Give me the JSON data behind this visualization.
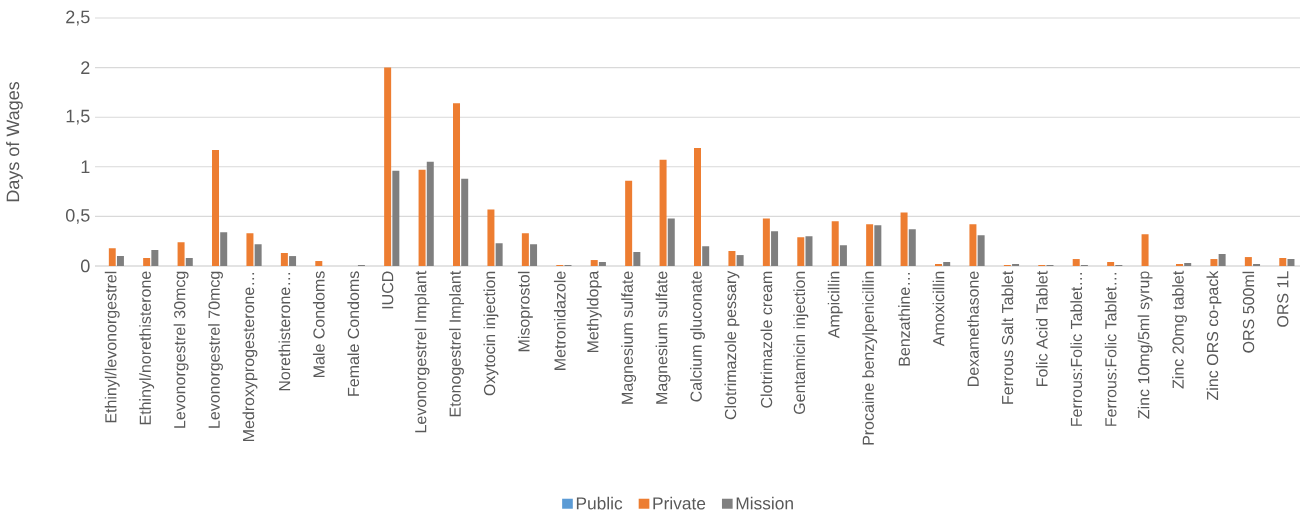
{
  "chart_data": {
    "type": "bar",
    "ylabel": "Days of Wages",
    "categories": [
      "Ethinyl/levonorgestrel",
      "Ethinyl/norethisterone",
      "Levonorgestrel 30mcg",
      "Levonorgestrel 70mcg",
      "Medroxyprogesterone…",
      "Norethisterone…",
      "Male Condoms",
      "Female Condoms",
      "IUCD",
      "Levonorgestrel Implant",
      "Etonogestrel Implant",
      "Oxytocin injection",
      "Misoprostol",
      "Metronidazole",
      "Methyldopa",
      "Magnesium sulfate",
      "Magnesium sulfate",
      "Calcium gluconate",
      "Clotrimazole pessary",
      "Clotrimazole cream",
      "Gentamicin injection",
      "Ampicillin",
      "Procaine benzylpenicillin",
      "Benzathine…",
      "Amoxicillin",
      "Dexamethasone",
      "Ferrous Salt Tablet",
      "Folic Acid Tablet",
      "Ferrous:Folic Tablet…",
      "Ferrous:Folic Tablet…",
      "Zinc 10mg/5ml syrup",
      "Zinc 20mg tablet",
      "Zinc ORS co-pack",
      "ORS 500ml",
      "ORS 1L"
    ],
    "series": [
      {
        "name": "Public",
        "color": "#5b9bd5",
        "values": [
          0,
          0,
          0,
          0,
          0,
          0,
          0,
          0,
          0,
          0,
          0,
          0,
          0,
          0,
          0,
          0,
          0,
          0,
          0,
          0,
          0,
          0,
          0,
          0,
          0,
          0,
          0,
          0,
          0,
          0,
          0,
          0,
          0,
          0,
          0
        ]
      },
      {
        "name": "Private",
        "color": "#ed7d31",
        "values": [
          0.18,
          0.08,
          0.24,
          1.17,
          0.33,
          0.13,
          0.05,
          0,
          2.0,
          0.97,
          1.64,
          0.57,
          0.33,
          0.01,
          0.06,
          0.86,
          1.07,
          1.19,
          0.15,
          0.48,
          0.29,
          0.45,
          0.42,
          0.54,
          0.02,
          0.42,
          0.01,
          0.01,
          0.07,
          0.04,
          0.32,
          0.02,
          0.07,
          0.09,
          0.08
        ]
      },
      {
        "name": "Mission",
        "color": "#7f7f7f",
        "values": [
          0.1,
          0.16,
          0.08,
          0.34,
          0.22,
          0.1,
          0,
          0.01,
          0.96,
          1.05,
          0.88,
          0.23,
          0.22,
          0.01,
          0.04,
          0.14,
          0.48,
          0.2,
          0.11,
          0.35,
          0.3,
          0.21,
          0.41,
          0.37,
          0.04,
          0.31,
          0.02,
          0.01,
          0.01,
          0.01,
          0,
          0.03,
          0.12,
          0.02,
          0.07
        ]
      }
    ],
    "ylim": [
      0,
      2.5
    ],
    "yticks": [
      0,
      {
        "value": 0.5,
        "label": "0,5"
      },
      1,
      {
        "value": 1.5,
        "label": "1,5"
      },
      2,
      {
        "value": 2.5,
        "label": "2,5"
      }
    ],
    "grid": "y",
    "legend": "bottom"
  }
}
